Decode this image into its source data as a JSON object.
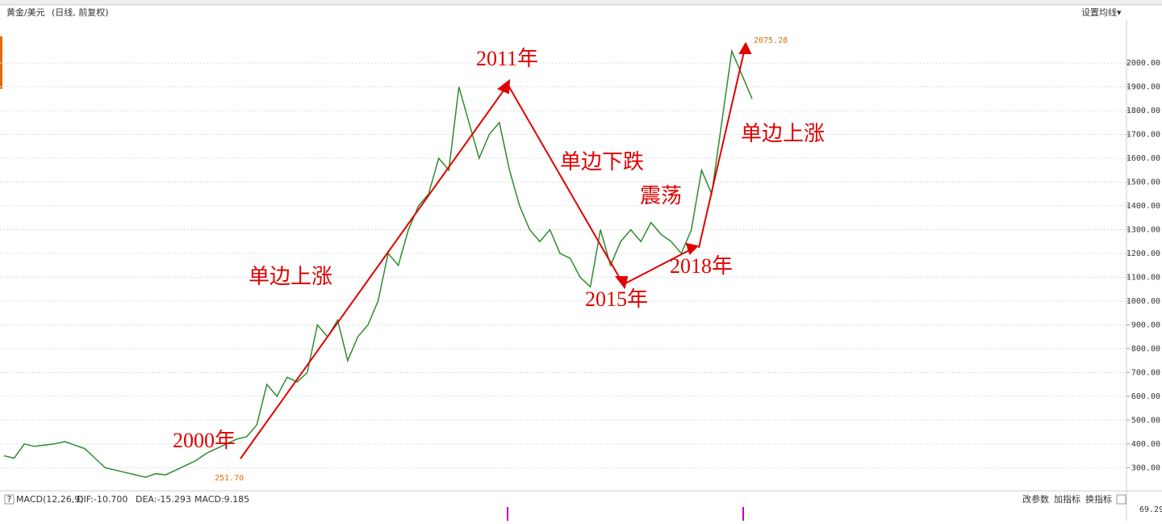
{
  "header": {
    "symbol": "黄金/美元",
    "mode": "(日线, 前复权)",
    "ma_button": "设置均线"
  },
  "chart_data": {
    "type": "line",
    "color": "#2e8b2e",
    "values": [
      350,
      340,
      400,
      390,
      395,
      400,
      410,
      395,
      380,
      340,
      300,
      290,
      280,
      270,
      260,
      275,
      270,
      290,
      310,
      330,
      360,
      380,
      400,
      420,
      430,
      480,
      650,
      600,
      680,
      660,
      700,
      900,
      850,
      920,
      750,
      850,
      900,
      1000,
      1200,
      1150,
      1300,
      1400,
      1450,
      1600,
      1550,
      1900,
      1750,
      1600,
      1700,
      1750,
      1550,
      1400,
      1300,
      1250,
      1300,
      1200,
      1180,
      1100,
      1060,
      1300,
      1150,
      1250,
      1300,
      1250,
      1330,
      1280,
      1250,
      1200,
      1300,
      1550,
      1450,
      1750,
      2050,
      1950,
      1850
    ],
    "ylim": [
      206,
      2180
    ],
    "yticks": [
      {
        "value": 300,
        "label": "300.00"
      },
      {
        "value": 400,
        "label": "400.00"
      },
      {
        "value": 500,
        "label": "500.00"
      },
      {
        "value": 600,
        "label": "600.00"
      },
      {
        "value": 700,
        "label": "700.00"
      },
      {
        "value": 800,
        "label": "800.00"
      },
      {
        "value": 900,
        "label": "900.00"
      },
      {
        "value": 1000,
        "label": "1000.00"
      },
      {
        "value": 1100,
        "label": "1100.00"
      },
      {
        "value": 1200,
        "label": "1200.00"
      },
      {
        "value": 1300,
        "label": "1300.00"
      },
      {
        "value": 1400,
        "label": "1400.00"
      },
      {
        "value": 1500,
        "label": "1500.00"
      },
      {
        "value": 1600,
        "label": "1600.00"
      },
      {
        "value": 1700,
        "label": "1700.00"
      },
      {
        "value": 1800,
        "label": "1800.00"
      },
      {
        "value": 1900,
        "label": "1900.00"
      },
      {
        "value": 2000,
        "label": "2000.00"
      }
    ],
    "grid": true,
    "max_label": "2075.28",
    "min_label": "251.70",
    "annotations": [
      "2011年",
      "单边下跌",
      "单边上涨",
      "2000年",
      "2015年",
      "震荡",
      "2018年",
      "单边上涨"
    ]
  },
  "macd": {
    "name": "MACD(12,26,9)",
    "dif": "DIF:-10.700",
    "dea": "DEA:-15.293",
    "macd": "MACD:9.185",
    "axis_label": "69.29",
    "buttons": [
      "改参数",
      "加指标",
      "换指标"
    ]
  }
}
